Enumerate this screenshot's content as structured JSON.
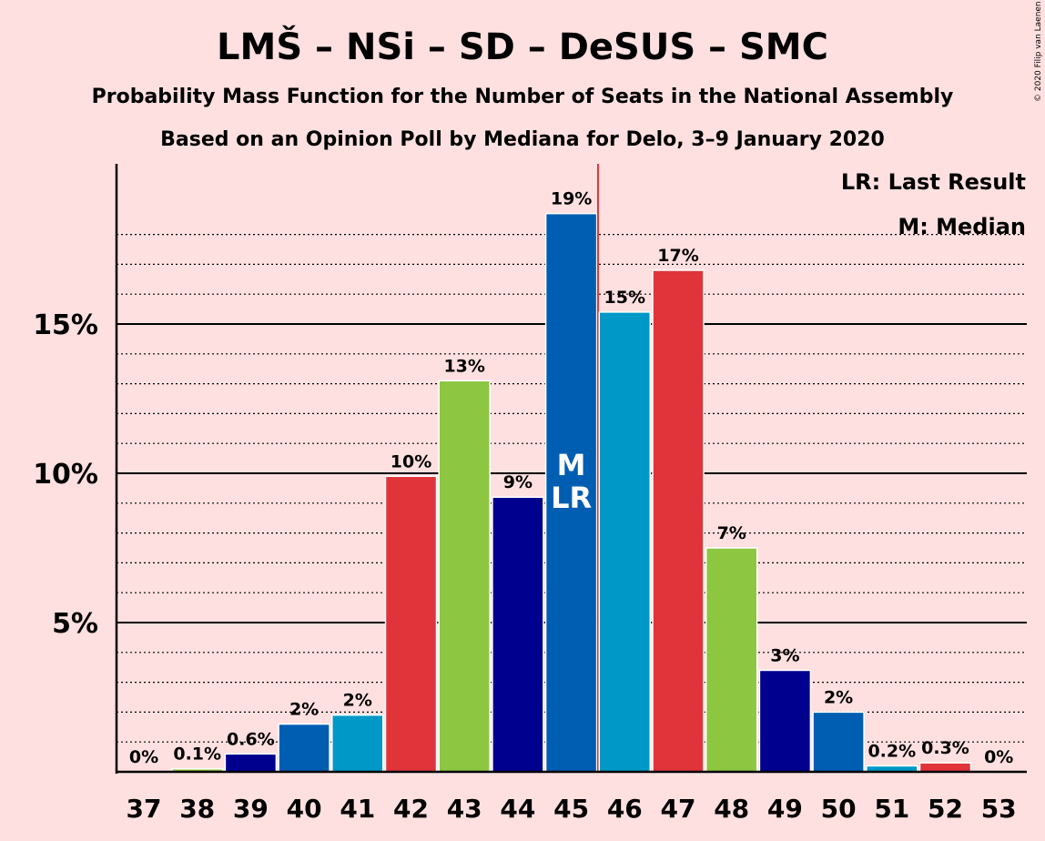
{
  "chart_data": {
    "type": "bar",
    "title": "LMŠ – NSi – SD – DeSUS – SMC",
    "subtitle1": "Probability Mass Function for the Number of Seats in the National Assembly",
    "subtitle2": "Based on an Opinion Poll by Mediana for Delo, 3–9 January 2020",
    "copyright": "© 2020 Filip van Laenen",
    "categories": [
      "37",
      "38",
      "39",
      "40",
      "41",
      "42",
      "43",
      "44",
      "45",
      "46",
      "47",
      "48",
      "49",
      "50",
      "51",
      "52",
      "53"
    ],
    "values": [
      0,
      0.1,
      0.6,
      1.6,
      1.9,
      9.9,
      13.1,
      9.2,
      18.7,
      15.4,
      16.8,
      7.5,
      3.4,
      2.0,
      0.2,
      0.3,
      0
    ],
    "data_labels": [
      "0%",
      "0.1%",
      "0.6%",
      "2%",
      "2%",
      "10%",
      "13%",
      "9%",
      "19%",
      "15%",
      "17%",
      "7%",
      "3%",
      "2%",
      "0.2%",
      "0.3%",
      "0%"
    ],
    "bar_colors": [
      "#e0343a",
      "#8dc641",
      "#00008f",
      "#005eb2",
      "#0098c6",
      "#e0343a",
      "#8dc641",
      "#00008f",
      "#005eb2",
      "#0098c6",
      "#e0343a",
      "#8dc641",
      "#00008f",
      "#005eb2",
      "#0098c6",
      "#e0343a",
      "#8dc641"
    ],
    "ylim": [
      0,
      20
    ],
    "yticks": [
      5,
      10,
      15
    ],
    "ytick_labels": [
      "5%",
      "10%",
      "15%"
    ],
    "minor_gridlines": true,
    "median_seat": "45",
    "last_result_seat": "45",
    "median_mark": "M",
    "last_result_mark": "LR",
    "majority_line_after": "45",
    "legend": [
      "LR: Last Result",
      "M: Median"
    ],
    "legend_position": "top-right"
  }
}
